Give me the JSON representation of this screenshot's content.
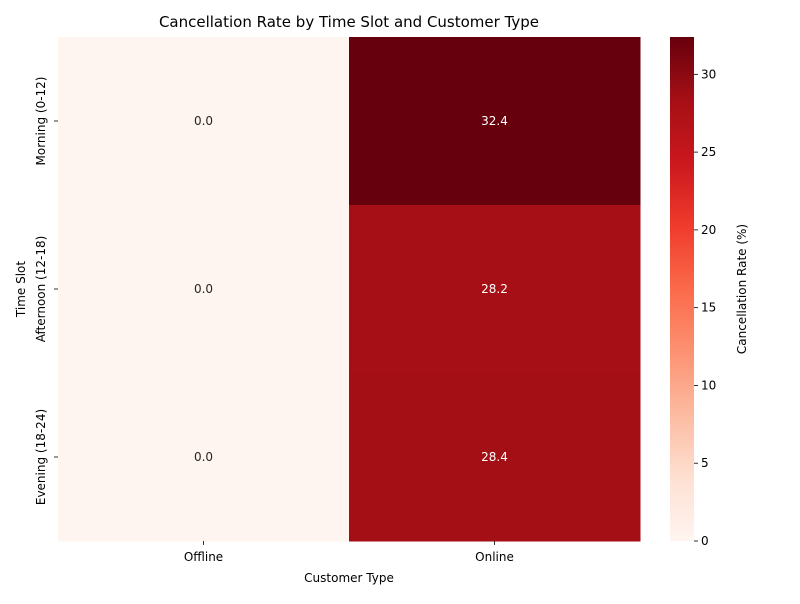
{
  "chart_data": {
    "type": "heatmap",
    "title": "Cancellation Rate by Time Slot and Customer Type",
    "xlabel": "Customer Type",
    "ylabel": "Time Slot",
    "x_categories": [
      "Offline",
      "Online"
    ],
    "y_categories": [
      "Morning (0-12)",
      "Afternoon (12-18)",
      "Evening (18-24)"
    ],
    "values": [
      [
        0.0,
        32.4
      ],
      [
        0.0,
        28.2
      ],
      [
        0.0,
        28.4
      ]
    ],
    "value_labels": [
      [
        "0.0",
        "32.4"
      ],
      [
        "0.0",
        "28.2"
      ],
      [
        "0.0",
        "28.4"
      ]
    ],
    "colorbar": {
      "label": "Cancellation Rate (%)",
      "range": [
        0,
        32.4
      ],
      "ticks": [
        0,
        5,
        10,
        15,
        20,
        25,
        30
      ],
      "colormap": [
        "#fff5f0",
        "#fee0d2",
        "#fcbba1",
        "#fc9272",
        "#fb6a4a",
        "#ef3b2c",
        "#cb181d",
        "#a50f15",
        "#67000d"
      ]
    },
    "grid": false,
    "legend": "colorbar-right"
  }
}
